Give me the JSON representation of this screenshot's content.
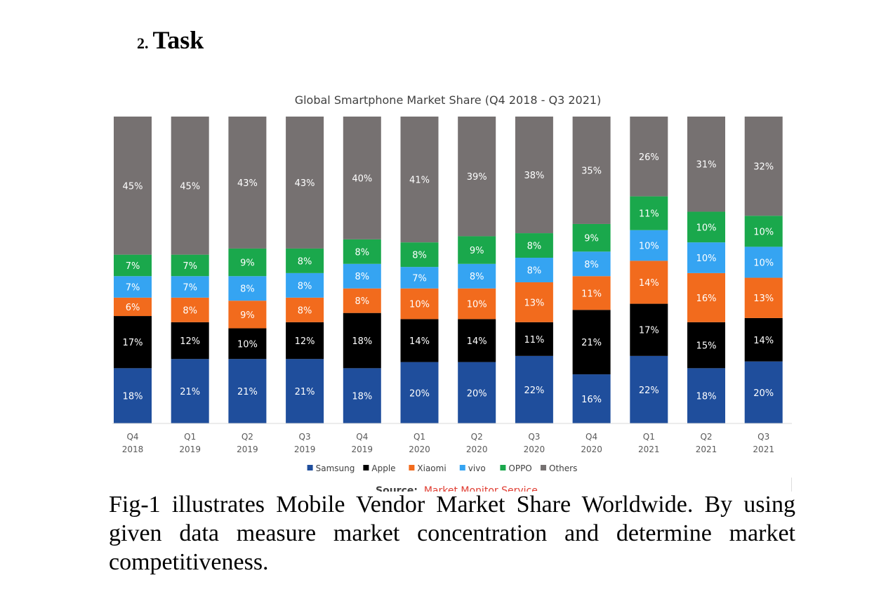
{
  "heading": {
    "number": "2.",
    "title": "Task"
  },
  "chart_data": {
    "type": "bar",
    "stacked": true,
    "title": "Global Smartphone Market Share (Q4 2018  - Q3 2021)",
    "categories": [
      [
        "Q4",
        "2018"
      ],
      [
        "Q1",
        "2019"
      ],
      [
        "Q2",
        "2019"
      ],
      [
        "Q3",
        "2019"
      ],
      [
        "Q4",
        "2019"
      ],
      [
        "Q1",
        "2020"
      ],
      [
        "Q2",
        "2020"
      ],
      [
        "Q3",
        "2020"
      ],
      [
        "Q4",
        "2020"
      ],
      [
        "Q1",
        "2021"
      ],
      [
        "Q2",
        "2021"
      ],
      [
        "Q3",
        "2021"
      ]
    ],
    "series": [
      {
        "name": "Samsung",
        "color": "#1f4e9c",
        "label_color": "#ffffff",
        "values": [
          18,
          21,
          21,
          21,
          18,
          20,
          20,
          22,
          16,
          22,
          18,
          20
        ]
      },
      {
        "name": "Apple",
        "color": "#000000",
        "label_color": "#ffffff",
        "values": [
          17,
          12,
          10,
          12,
          18,
          14,
          14,
          11,
          21,
          17,
          15,
          14
        ]
      },
      {
        "name": "Xiaomi",
        "color": "#f26b1d",
        "label_color": "#ffffff",
        "values": [
          6,
          8,
          9,
          8,
          8,
          10,
          10,
          13,
          11,
          14,
          16,
          13
        ]
      },
      {
        "name": "vivo",
        "color": "#35a4f2",
        "label_color": "#ffffff",
        "values": [
          7,
          7,
          8,
          8,
          8,
          7,
          8,
          8,
          8,
          10,
          10,
          10
        ]
      },
      {
        "name": "OPPO",
        "color": "#1aa84c",
        "label_color": "#ffffff",
        "values": [
          7,
          7,
          9,
          8,
          8,
          8,
          9,
          8,
          9,
          11,
          10,
          10
        ]
      },
      {
        "name": "Others",
        "color": "#767171",
        "label_color": "#ffffff",
        "values": [
          45,
          45,
          43,
          43,
          40,
          41,
          39,
          38,
          35,
          26,
          31,
          32
        ]
      }
    ],
    "ylim": [
      0,
      100
    ],
    "label_suffix": "%",
    "legend_position": "bottom",
    "source_label": "Source:",
    "source_link": "Market Monitor Service"
  },
  "caption": "Fig-1 illustrates Mobile Vendor Market Share Worldwide. By using given data measure market concentration and determine market competitiveness."
}
